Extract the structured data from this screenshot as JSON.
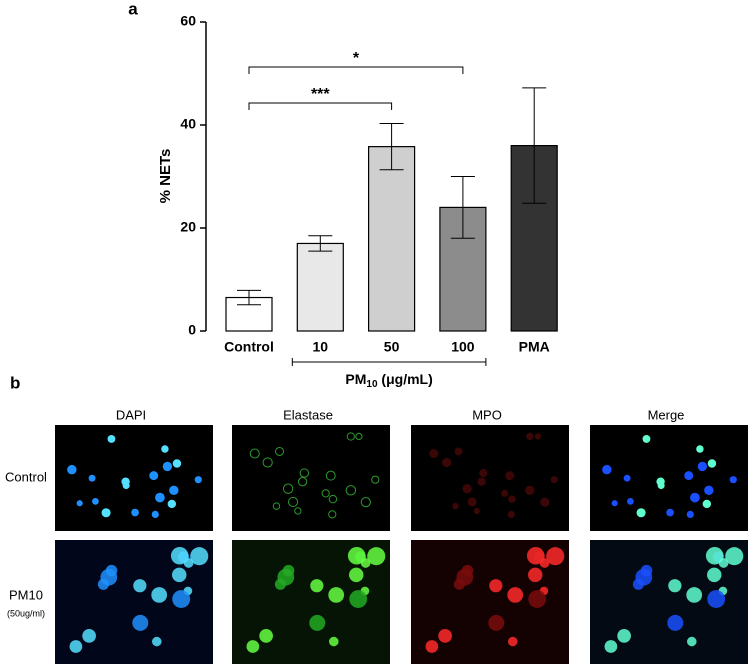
{
  "chart_data": {
    "type": "bar",
    "panel_label": "a",
    "ylabel": "% NETs",
    "categories": [
      "Control",
      "10",
      "50",
      "100",
      "PMA"
    ],
    "series": [
      {
        "values": [
          6.5,
          17,
          35.8,
          24,
          36
        ],
        "errors": [
          1.4,
          1.5,
          4.5,
          6,
          11.2
        ],
        "colors": [
          "#ffffff",
          "#e8e8e8",
          "#cfcfcf",
          "#8c8c8c",
          "#333333"
        ]
      }
    ],
    "ylim": [
      0,
      60
    ],
    "yticks": [
      0,
      20,
      40,
      60
    ],
    "xgroup": {
      "from": "10",
      "to": "100",
      "label": {
        "text": "PM",
        "sub": "10",
        "suffix": " (μg/mL)"
      }
    },
    "annotations": [
      {
        "text": "***",
        "from": "Control",
        "to": "50"
      },
      {
        "text": "*",
        "from": "Control",
        "to": "100"
      }
    ]
  },
  "panel_b": {
    "label": "b",
    "columns": [
      "DAPI",
      "Elastase",
      "MPO",
      "Merge"
    ],
    "rows": [
      {
        "label": "Control"
      },
      {
        "label": "PM10",
        "sublabel": "(50ug/ml)"
      }
    ]
  }
}
